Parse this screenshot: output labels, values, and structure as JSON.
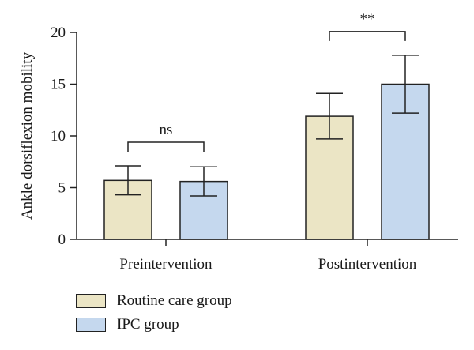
{
  "chart_data": {
    "type": "bar",
    "title": "",
    "xlabel": "",
    "ylabel": "Ankle dorsiflexion mobility",
    "ylim": [
      0,
      20
    ],
    "yticks": [
      0,
      5,
      10,
      15,
      20
    ],
    "categories": [
      "Preintervention",
      "Postintervention"
    ],
    "series": [
      {
        "name": "Routine care group",
        "color": "#ebe5c5",
        "values": [
          5.7,
          11.9
        ],
        "errors": [
          1.4,
          2.2
        ]
      },
      {
        "name": "IPC group",
        "color": "#c5d8ee",
        "values": [
          5.6,
          15.0
        ],
        "errors": [
          1.4,
          2.8
        ]
      }
    ],
    "annotations": [
      {
        "category": "Preintervention",
        "text": "ns"
      },
      {
        "category": "Postintervention",
        "text": "**"
      }
    ],
    "legend_position": "bottom-left",
    "grid": false
  }
}
